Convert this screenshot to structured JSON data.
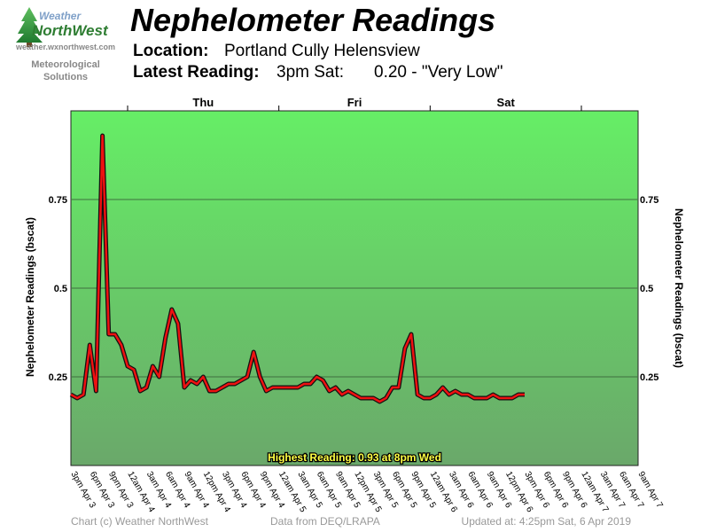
{
  "header": {
    "title": "Nephelometer Readings",
    "location_label": "Location:",
    "location_value": "Portland Cully Helensview",
    "latest_label": "Latest Reading:",
    "latest_time": "3pm Sat:",
    "latest_value": "0.20 - \"Very Low\""
  },
  "logo": {
    "brand_top": "Weather",
    "brand_bottom": "NorthWest",
    "url": "weather.wxnorthwest.com",
    "tagline_line1": "Meteorological",
    "tagline_line2": "Solutions"
  },
  "footer": {
    "copyright": "Chart (c) Weather NorthWest",
    "source": "Data from DEQ/LRAPA",
    "updated": "Updated at: 4:25pm Sat, 6 Apr 2019"
  },
  "colors": {
    "plot_top": "#66ee66",
    "plot_bottom": "#6aa86a",
    "line": "#ee1111",
    "line_shadow": "#111111",
    "annotation_text": "#ffff44"
  },
  "chart_data": {
    "type": "line",
    "ylabel_left": "Nephelometer Readings (bscat)",
    "ylabel_right": "Nephelometer Readings (bscat)",
    "y_ticks": [
      0.25,
      0.5,
      0.75
    ],
    "y_tick_labels": [
      "0.25",
      "0.5",
      "0.75"
    ],
    "ylim": [
      0,
      1.0
    ],
    "x_start_hour": 0,
    "x_end_hour": 90,
    "x_ticks": [
      {
        "hour": 0,
        "label": "3pm Apr 3"
      },
      {
        "hour": 3,
        "label": "6pm Apr 3"
      },
      {
        "hour": 6,
        "label": "9pm Apr 3"
      },
      {
        "hour": 9,
        "label": "12am Apr 4"
      },
      {
        "hour": 12,
        "label": "3am Apr 4"
      },
      {
        "hour": 15,
        "label": "6am Apr 4"
      },
      {
        "hour": 18,
        "label": "9am Apr 4"
      },
      {
        "hour": 21,
        "label": "12pm Apr 4"
      },
      {
        "hour": 24,
        "label": "3pm Apr 4"
      },
      {
        "hour": 27,
        "label": "6pm Apr 4"
      },
      {
        "hour": 30,
        "label": "9pm Apr 4"
      },
      {
        "hour": 33,
        "label": "12am Apr 5"
      },
      {
        "hour": 36,
        "label": "3am Apr 5"
      },
      {
        "hour": 39,
        "label": "6am Apr 5"
      },
      {
        "hour": 42,
        "label": "9am Apr 5"
      },
      {
        "hour": 45,
        "label": "12pm Apr 5"
      },
      {
        "hour": 48,
        "label": "3pm Apr 5"
      },
      {
        "hour": 51,
        "label": "6pm Apr 5"
      },
      {
        "hour": 54,
        "label": "9pm Apr 5"
      },
      {
        "hour": 57,
        "label": "12am Apr 6"
      },
      {
        "hour": 60,
        "label": "3am Apr 6"
      },
      {
        "hour": 63,
        "label": "6am Apr 6"
      },
      {
        "hour": 66,
        "label": "9am Apr 6"
      },
      {
        "hour": 69,
        "label": "12pm Apr 6"
      },
      {
        "hour": 72,
        "label": "3pm Apr 6"
      },
      {
        "hour": 75,
        "label": "6pm Apr 6"
      },
      {
        "hour": 78,
        "label": "9pm Apr 6"
      },
      {
        "hour": 81,
        "label": "12am Apr 7"
      },
      {
        "hour": 84,
        "label": "3am Apr 7"
      },
      {
        "hour": 87,
        "label": "6am Apr 7"
      },
      {
        "hour": 90,
        "label": "9am Apr 7"
      }
    ],
    "day_labels": [
      {
        "hour": 21,
        "label": "Thu"
      },
      {
        "hour": 45,
        "label": "Fri"
      },
      {
        "hour": 69,
        "label": "Sat"
      }
    ],
    "day_boundaries": [
      9,
      33,
      57,
      81
    ],
    "annotation": "Highest Reading: 0.93 at 8pm Wed",
    "series": [
      {
        "hours": [
          0,
          1,
          2,
          3,
          4,
          5,
          6,
          7,
          8,
          9,
          10,
          11,
          12,
          13,
          14,
          15,
          16,
          17,
          18,
          19,
          20,
          21,
          22,
          23,
          24,
          25,
          26,
          27,
          28,
          29,
          30,
          31,
          32,
          33,
          34,
          35,
          36,
          37,
          38,
          39,
          40,
          41,
          42,
          43,
          44,
          45,
          46,
          47,
          48,
          49,
          50,
          51,
          52,
          53,
          54,
          55,
          56,
          57,
          58,
          59,
          60,
          61,
          62,
          63,
          64,
          65,
          66,
          67,
          68,
          69,
          70,
          71,
          72
        ],
        "values": [
          0.2,
          0.19,
          0.2,
          0.34,
          0.21,
          0.93,
          0.37,
          0.37,
          0.34,
          0.28,
          0.27,
          0.21,
          0.22,
          0.28,
          0.25,
          0.36,
          0.44,
          0.4,
          0.22,
          0.24,
          0.23,
          0.25,
          0.21,
          0.21,
          0.22,
          0.23,
          0.23,
          0.24,
          0.25,
          0.32,
          0.25,
          0.21,
          0.22,
          0.22,
          0.22,
          0.22,
          0.22,
          0.23,
          0.23,
          0.25,
          0.24,
          0.21,
          0.22,
          0.2,
          0.21,
          0.2,
          0.19,
          0.19,
          0.19,
          0.18,
          0.19,
          0.22,
          0.22,
          0.33,
          0.37,
          0.2,
          0.19,
          0.19,
          0.2,
          0.22,
          0.2,
          0.21,
          0.2,
          0.2,
          0.19,
          0.19,
          0.19,
          0.2,
          0.19,
          0.19,
          0.19,
          0.2,
          0.2
        ]
      }
    ]
  }
}
